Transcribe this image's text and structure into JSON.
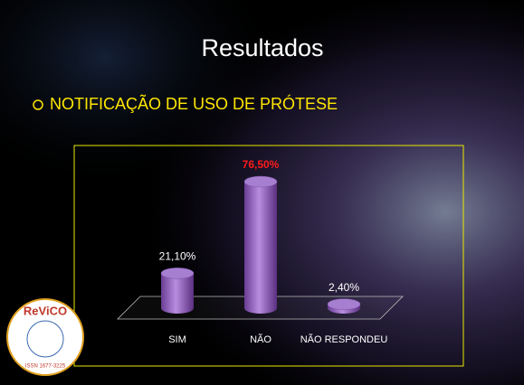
{
  "title": "Resultados",
  "bullet": "NOTIFICAÇÃO DE USO DE PRÓTESE",
  "logo": {
    "name": "ReViCO",
    "issn": "ISSN 1677-3225"
  },
  "chart_data": {
    "type": "bar3d-cylinder",
    "categories": [
      "SIM",
      "NÃO",
      "NÃO RESPONDEU"
    ],
    "values": [
      21.1,
      76.5,
      2.4
    ],
    "value_labels": [
      "21,10%",
      "76,50%",
      "2,40%"
    ],
    "value_label_colors": [
      "#ffffff",
      "#ff1a1a",
      "#ffffff"
    ],
    "color": "#8e5cbf"
  }
}
